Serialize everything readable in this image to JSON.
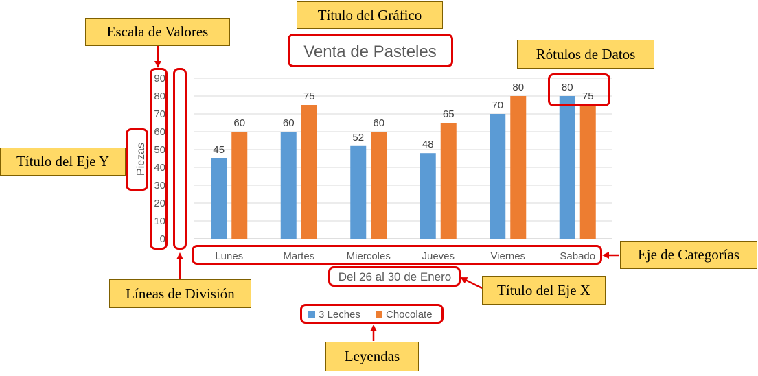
{
  "chart_data": {
    "type": "bar",
    "title": "Venta de Pasteles",
    "xlabel": "Del 26 al 30 de Enero",
    "ylabel": "Piezas",
    "categories": [
      "Lunes",
      "Martes",
      "Miercoles",
      "Jueves",
      "Viernes",
      "Sabado"
    ],
    "series": [
      {
        "name": "3 Leches",
        "values": [
          45,
          60,
          52,
          48,
          70,
          80
        ],
        "color": "#5b9bd5"
      },
      {
        "name": "Chocolate",
        "values": [
          60,
          75,
          60,
          65,
          80,
          75
        ],
        "color": "#ed7d31"
      }
    ],
    "ylim": [
      0,
      90
    ],
    "yticks": [
      0,
      10,
      20,
      30,
      40,
      50,
      60,
      70,
      80,
      90
    ],
    "grid": true,
    "legend_position": "bottom",
    "data_labels": true
  },
  "callouts": {
    "titulo_grafico": "Título del Gráfico",
    "escala_valores": "Escala de Valores",
    "rotulos_datos": "Rótulos de Datos",
    "titulo_eje_y": "Título del Eje Y",
    "eje_categorias": "Eje de Categorías",
    "titulo_eje_x": "Título del Eje X",
    "lineas_division": "Líneas de División",
    "leyendas": "Leyendas"
  },
  "colors": {
    "callout_fill": "#ffd966",
    "highlight": "#e00000",
    "gridline": "#d9d9d9",
    "text": "#595959"
  }
}
